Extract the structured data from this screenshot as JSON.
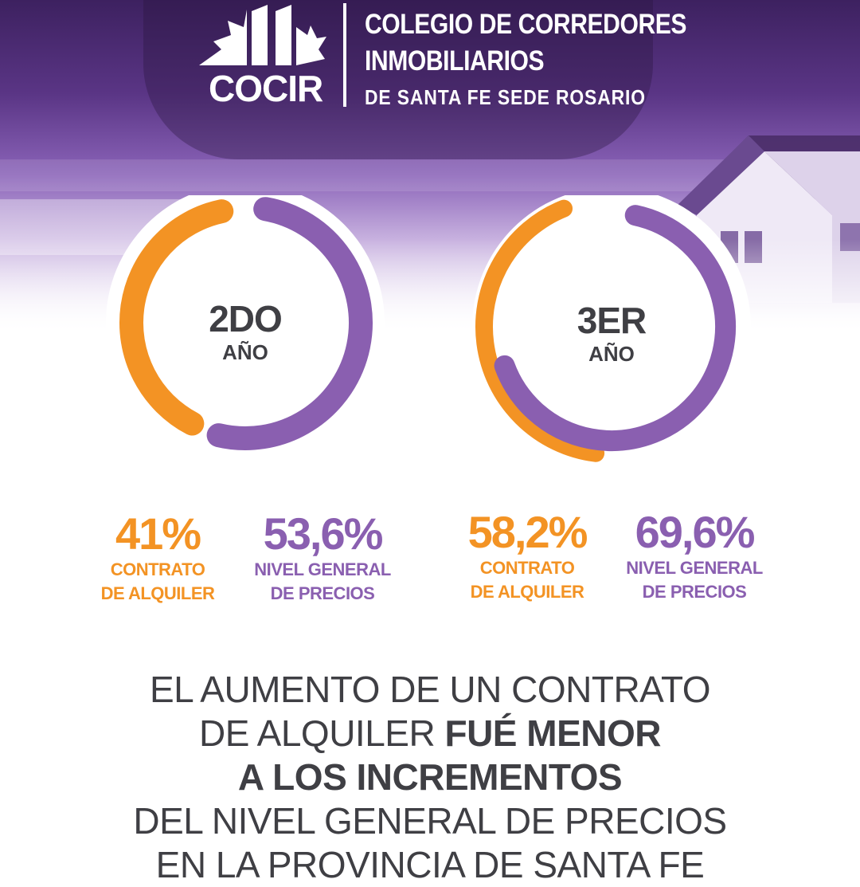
{
  "header": {
    "logo_text": "COCIR",
    "org_line1": "COLEGIO DE CORREDORES",
    "org_line2": "INMOBILIARIOS",
    "org_line3": "DE SANTA FE SEDE ROSARIO"
  },
  "colors": {
    "orange": "#f39324",
    "purple": "#8a5fb0",
    "text": "#3f3f44",
    "hero": "#5a3585"
  },
  "chart_data": [
    {
      "type": "donut",
      "center_title": "2DO",
      "center_subtitle": "AÑO",
      "series": [
        {
          "name": "CONTRATO DE ALQUILER",
          "value": 41,
          "display": "41%",
          "color": "#f39324"
        },
        {
          "name": "NIVEL GENERAL DE PRECIOS",
          "value": 53.6,
          "display": "53,6%",
          "color": "#8a5fb0"
        }
      ]
    },
    {
      "type": "donut",
      "center_title": "3ER",
      "center_subtitle": "AÑO",
      "series": [
        {
          "name": "CONTRATO DE ALQUILER",
          "value": 58.2,
          "display": "58,2%",
          "color": "#f39324"
        },
        {
          "name": "NIVEL GENERAL DE PRECIOS",
          "value": 69.6,
          "display": "69,6%",
          "color": "#8a5fb0"
        }
      ]
    }
  ],
  "stats": {
    "y2_rent_label_1": "CONTRATO",
    "y2_rent_label_2": "DE ALQUILER",
    "y2_price_label_1": "NIVEL GENERAL",
    "y2_price_label_2": "DE PRECIOS",
    "y3_rent_label_1": "CONTRATO",
    "y3_rent_label_2": "DE ALQUILER",
    "y3_price_label_1": "NIVEL GENERAL",
    "y3_price_label_2": "DE PRECIOS"
  },
  "headline": {
    "l1": "EL AUMENTO DE UN CONTRATO",
    "l2a": "DE ALQUILER ",
    "l2b": "FUÉ MENOR",
    "l3": "A LOS INCREMENTOS",
    "l4": "DEL NIVEL GENERAL DE PRECIOS",
    "l5": "EN LA PROVINCIA DE SANTA FE"
  }
}
